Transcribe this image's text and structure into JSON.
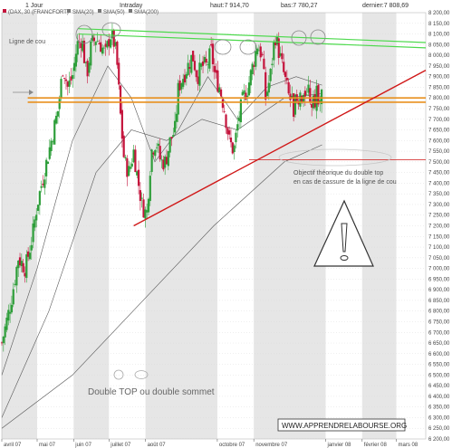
{
  "header": {
    "timeframe": "1 Jour",
    "mode": "Intraday",
    "high": "haut:7 914,70",
    "low": "bas:7 780,27",
    "last": "dernier:7 808,69"
  },
  "legend": {
    "instrument": "(DAX, 30 (FRANCFORT)",
    "sma20": "SMA(20)",
    "sma50": "SMA(50)",
    "sma200": "SMA(200)"
  },
  "annotations": {
    "neckline": "Ligne de cou",
    "objective_line1": "Objectif théorique du double top",
    "objective_line2": "en cas de cassure de la ligne de cou",
    "double_top": "Double TOP ou double sommet",
    "watermark": "WWW.APPRENDRELABOURSE.ORG"
  },
  "colors": {
    "up": "#2e9e3a",
    "down": "#c4143c",
    "resistance": "#4cd94c",
    "neckline": "#e8901e",
    "trendline": "#d01818",
    "objective": "#d01818",
    "sma": "#555555",
    "band": "#e6e6e6",
    "grid": "#d6d6d6"
  },
  "chart_data": {
    "type": "candlestick",
    "y_ticks": [
      "8 200,00",
      "8 150,00",
      "8 100,00",
      "8 050,00",
      "8 000,00",
      "7 950,00",
      "7 900,00",
      "7 850,00",
      "7 800,00",
      "7 750,00",
      "7 700,00",
      "7 650,00",
      "7 600,00",
      "7 550,00",
      "7 500,00",
      "7 450,00",
      "7 400,00",
      "7 350,00",
      "7 300,00",
      "7 250,00",
      "7 200,00",
      "7 150,00",
      "7 100,00",
      "7 050,00",
      "7 000,00",
      "6 950,00",
      "6 900,00",
      "6 850,00",
      "6 800,00",
      "6 750,00",
      "6 700,00",
      "6 650,00",
      "6 600,00",
      "6 550,00",
      "6 500,00",
      "6 450,00",
      "6 400,00",
      "6 350,00",
      "6 300,00",
      "6 250,00",
      "6 200,00"
    ],
    "ylim": [
      6200,
      8200
    ],
    "x_labels": [
      "avril 07",
      "mai 07",
      "juin 07",
      "juillet 07",
      "août 07",
      "octobre 07",
      "novembre 07",
      "janvier 08",
      "février 08",
      "mars 08"
    ],
    "x_label_days": [
      0,
      30,
      61,
      91,
      122,
      183,
      214,
      275,
      306,
      335
    ],
    "x_range_days": [
      0,
      360
    ],
    "last_candle_day": 272,
    "candle_close_path": [
      [
        0,
        6650
      ],
      [
        8,
        6850
      ],
      [
        14,
        7050
      ],
      [
        20,
        7000
      ],
      [
        26,
        7150
      ],
      [
        30,
        7300
      ],
      [
        36,
        7450
      ],
      [
        42,
        7600
      ],
      [
        48,
        7750
      ],
      [
        52,
        7950
      ],
      [
        56,
        7850
      ],
      [
        60,
        7900
      ],
      [
        64,
        8050
      ],
      [
        68,
        8080
      ],
      [
        72,
        7900
      ],
      [
        76,
        8050
      ],
      [
        80,
        8080
      ],
      [
        84,
        8050
      ],
      [
        88,
        8000
      ],
      [
        92,
        8100
      ],
      [
        96,
        8050
      ],
      [
        98,
        7950
      ],
      [
        101,
        7700
      ],
      [
        104,
        7500
      ],
      [
        108,
        7450
      ],
      [
        112,
        7550
      ],
      [
        116,
        7400
      ],
      [
        119,
        7300
      ],
      [
        123,
        7250
      ],
      [
        127,
        7550
      ],
      [
        131,
        7600
      ],
      [
        135,
        7500
      ],
      [
        139,
        7500
      ],
      [
        143,
        7600
      ],
      [
        147,
        7650
      ],
      [
        150,
        7850
      ],
      [
        154,
        7900
      ],
      [
        158,
        7950
      ],
      [
        162,
        8000
      ],
      [
        166,
        7900
      ],
      [
        170,
        7950
      ],
      [
        174,
        7950
      ],
      [
        178,
        8020
      ],
      [
        181,
        7900
      ],
      [
        185,
        7850
      ],
      [
        189,
        7750
      ],
      [
        193,
        7600
      ],
      [
        197,
        7550
      ],
      [
        201,
        7700
      ],
      [
        205,
        7800
      ],
      [
        209,
        7850
      ],
      [
        213,
        7950
      ],
      [
        217,
        8050
      ],
      [
        221,
        8000
      ],
      [
        224,
        7800
      ],
      [
        228,
        7900
      ],
      [
        232,
        8100
      ],
      [
        236,
        8000
      ],
      [
        240,
        7900
      ],
      [
        244,
        7800
      ]
    ],
    "sma_paths": [
      {
        "name": "SMA(20)",
        "points": [
          [
            0,
            6500
          ],
          [
            30,
            7000
          ],
          [
            60,
            7600
          ],
          [
            90,
            7950
          ],
          [
            110,
            7800
          ],
          [
            130,
            7500
          ],
          [
            150,
            7650
          ],
          [
            175,
            7900
          ],
          [
            200,
            7700
          ],
          [
            225,
            7850
          ],
          [
            250,
            7900
          ],
          [
            272,
            7860
          ]
        ]
      },
      {
        "name": "SMA(50)",
        "points": [
          [
            0,
            6300
          ],
          [
            40,
            6800
          ],
          [
            80,
            7450
          ],
          [
            110,
            7650
          ],
          [
            140,
            7600
          ],
          [
            170,
            7700
          ],
          [
            200,
            7650
          ],
          [
            240,
            7800
          ],
          [
            272,
            7820
          ]
        ]
      },
      {
        "name": "SMA(200)",
        "points": [
          [
            0,
            6250
          ],
          [
            60,
            6500
          ],
          [
            120,
            6850
          ],
          [
            180,
            7200
          ],
          [
            240,
            7500
          ],
          [
            272,
            7580
          ]
        ]
      }
    ],
    "levels": {
      "resistance_upper": [
        [
          65,
          8125
        ],
        [
          360,
          8060
        ]
      ],
      "resistance_lower": [
        [
          65,
          8100
        ],
        [
          360,
          8035
        ]
      ],
      "neckline_upper": [
        [
          22,
          7800
        ],
        [
          360,
          7800
        ]
      ],
      "neckline_lower": [
        [
          22,
          7780
        ],
        [
          360,
          7780
        ]
      ],
      "trendline": [
        [
          112,
          7200
        ],
        [
          360,
          7930
        ]
      ],
      "objective": [
        [
          210,
          7510
        ],
        [
          360,
          7510
        ]
      ]
    }
  }
}
